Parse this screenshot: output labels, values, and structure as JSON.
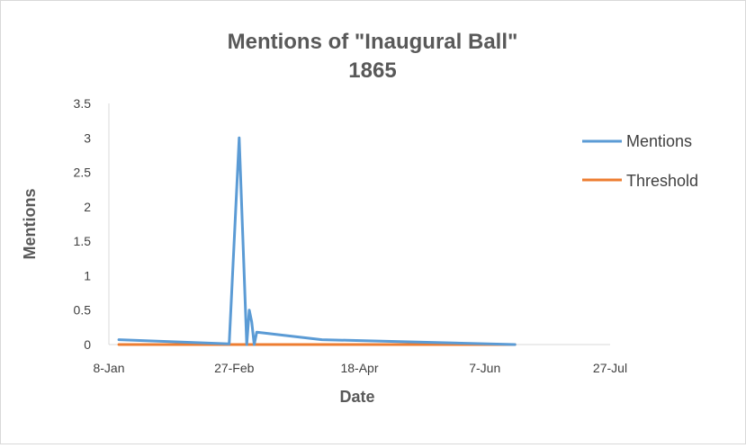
{
  "chart_data": {
    "type": "line",
    "title": [
      "Mentions of \"Inaugural Ball\"",
      "1865"
    ],
    "xlabel": "Date",
    "ylabel": "Mentions",
    "x_axis_kind": "date",
    "year": 1865,
    "xlim": [
      "1865-01-08",
      "1865-07-27"
    ],
    "ylim": [
      0,
      3.5
    ],
    "x_ticks": [
      "1865-01-08",
      "1865-02-27",
      "1865-04-18",
      "1865-06-07",
      "1865-07-27"
    ],
    "x_tick_labels": [
      "8-Jan",
      "27-Feb",
      "18-Apr",
      "7-Jun",
      "27-Jul"
    ],
    "y_ticks": [
      0,
      0.5,
      1,
      1.5,
      2,
      2.5,
      3,
      3.5
    ],
    "y_tick_labels": [
      "0",
      "0.5",
      "1",
      "1.5",
      "2",
      "2.5",
      "3",
      "3.5"
    ],
    "grid": false,
    "legend_position": "right",
    "series": [
      {
        "name": "Mentions",
        "color": "#5b9bd5",
        "points": [
          {
            "x": "1865-01-12",
            "y": 0.07
          },
          {
            "x": "1865-02-25",
            "y": 0.01
          },
          {
            "x": "1865-03-01",
            "y": 3.0
          },
          {
            "x": "1865-03-04",
            "y": 0
          },
          {
            "x": "1865-03-05",
            "y": 0.5
          },
          {
            "x": "1865-03-06",
            "y": 0.33
          },
          {
            "x": "1865-03-07",
            "y": 0
          },
          {
            "x": "1865-03-08",
            "y": 0.18
          },
          {
            "x": "1865-04-03",
            "y": 0.07
          },
          {
            "x": "1865-06-19",
            "y": 0
          }
        ]
      },
      {
        "name": "Threshold",
        "color": "#ed7d31",
        "points": [
          {
            "x": "1865-01-12",
            "y": 0
          },
          {
            "x": "1865-06-19",
            "y": 0
          }
        ]
      }
    ]
  }
}
